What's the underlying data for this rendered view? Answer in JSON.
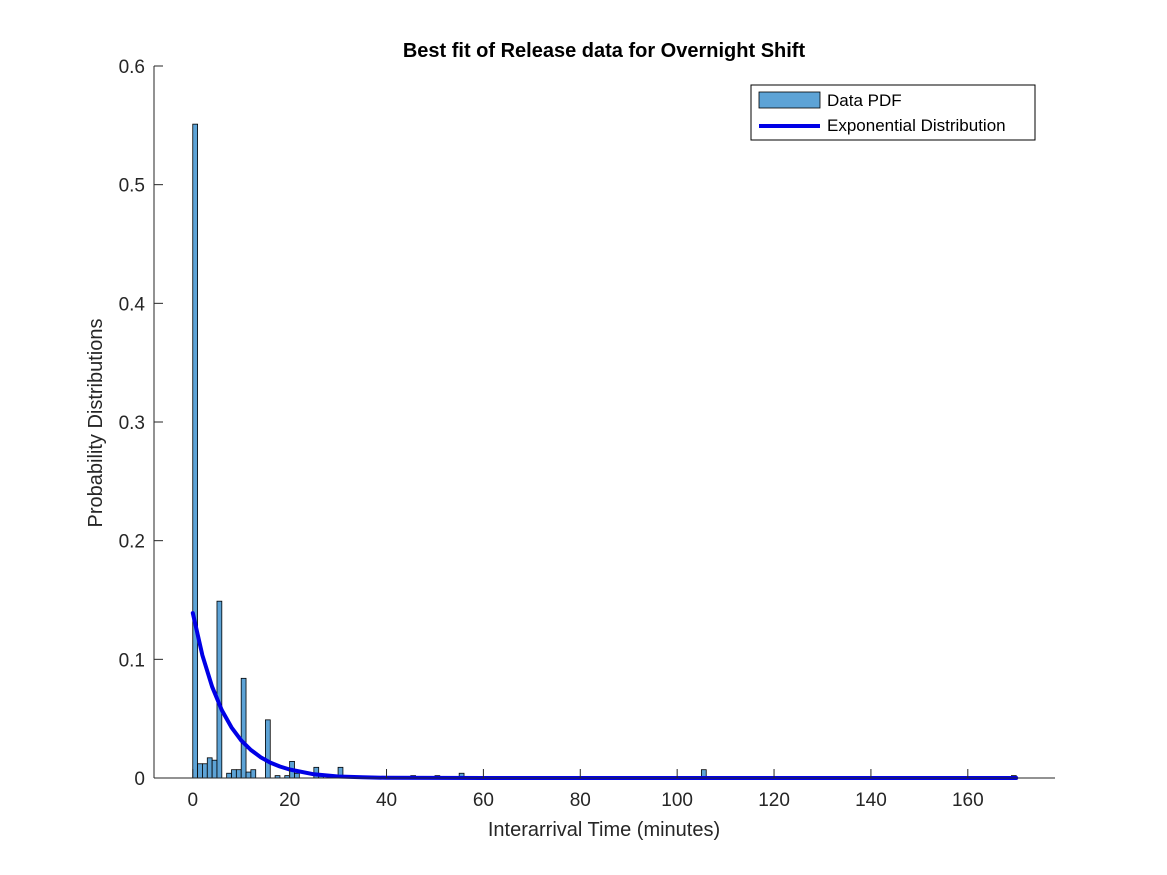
{
  "chart_data": {
    "type": "bar",
    "title": "Best fit of Release data for Overnight Shift",
    "xlabel": "Interarrival Time (minutes)",
    "ylabel": "Probability Distributions",
    "xlim": [
      -8,
      178
    ],
    "ylim": [
      0,
      0.6
    ],
    "xticks": [
      0,
      20,
      40,
      60,
      80,
      100,
      120,
      140,
      160
    ],
    "yticks": [
      0,
      0.1,
      0.2,
      0.3,
      0.4,
      0.5,
      0.6
    ],
    "xtick_labels": [
      "0",
      "20",
      "40",
      "60",
      "80",
      "100",
      "120",
      "140",
      "160"
    ],
    "ytick_labels": [
      "0",
      "0.1",
      "0.2",
      "0.3",
      "0.4",
      "0.5",
      "0.6"
    ],
    "legend_position": "top-right",
    "grid": false,
    "histogram": {
      "name": "Data PDF",
      "bin_width": 1,
      "color": "#5DA3D6",
      "edge_color": "#000000",
      "bins": [
        {
          "x": 0,
          "y": 0.551
        },
        {
          "x": 1,
          "y": 0.012
        },
        {
          "x": 2,
          "y": 0.012
        },
        {
          "x": 3,
          "y": 0.017
        },
        {
          "x": 4,
          "y": 0.015
        },
        {
          "x": 5,
          "y": 0.149
        },
        {
          "x": 7,
          "y": 0.004
        },
        {
          "x": 8,
          "y": 0.007
        },
        {
          "x": 9,
          "y": 0.007
        },
        {
          "x": 10,
          "y": 0.084
        },
        {
          "x": 11,
          "y": 0.005
        },
        {
          "x": 12,
          "y": 0.007
        },
        {
          "x": 15,
          "y": 0.049
        },
        {
          "x": 17,
          "y": 0.002
        },
        {
          "x": 19,
          "y": 0.002
        },
        {
          "x": 20,
          "y": 0.014
        },
        {
          "x": 21,
          "y": 0.004
        },
        {
          "x": 25,
          "y": 0.009
        },
        {
          "x": 26,
          "y": 0.002
        },
        {
          "x": 30,
          "y": 0.009
        },
        {
          "x": 37,
          "y": 0.001
        },
        {
          "x": 45,
          "y": 0.002
        },
        {
          "x": 50,
          "y": 0.002
        },
        {
          "x": 55,
          "y": 0.004
        },
        {
          "x": 66,
          "y": 0.001
        },
        {
          "x": 75,
          "y": 0.001
        },
        {
          "x": 83,
          "y": 0.001
        },
        {
          "x": 101,
          "y": 0.001
        },
        {
          "x": 105,
          "y": 0.007
        },
        {
          "x": 125,
          "y": 0.001
        },
        {
          "x": 130,
          "y": 0.001
        },
        {
          "x": 169,
          "y": 0.002
        }
      ]
    },
    "series": [
      {
        "name": "Exponential Distribution",
        "type": "line",
        "color": "#0000E6",
        "x": [
          0,
          2,
          4,
          6,
          8,
          10,
          12,
          14,
          16,
          18,
          20,
          25,
          30,
          35,
          40,
          50,
          60,
          80,
          100,
          120,
          140,
          160,
          170
        ],
        "values": [
          0.139,
          0.1034,
          0.0769,
          0.0572,
          0.0426,
          0.0317,
          0.0236,
          0.0175,
          0.013,
          0.0097,
          0.0072,
          0.0031,
          0.0013,
          0.0006,
          0.0002,
          0.0001,
          0,
          0,
          0,
          0,
          0,
          0,
          0
        ]
      }
    ]
  }
}
